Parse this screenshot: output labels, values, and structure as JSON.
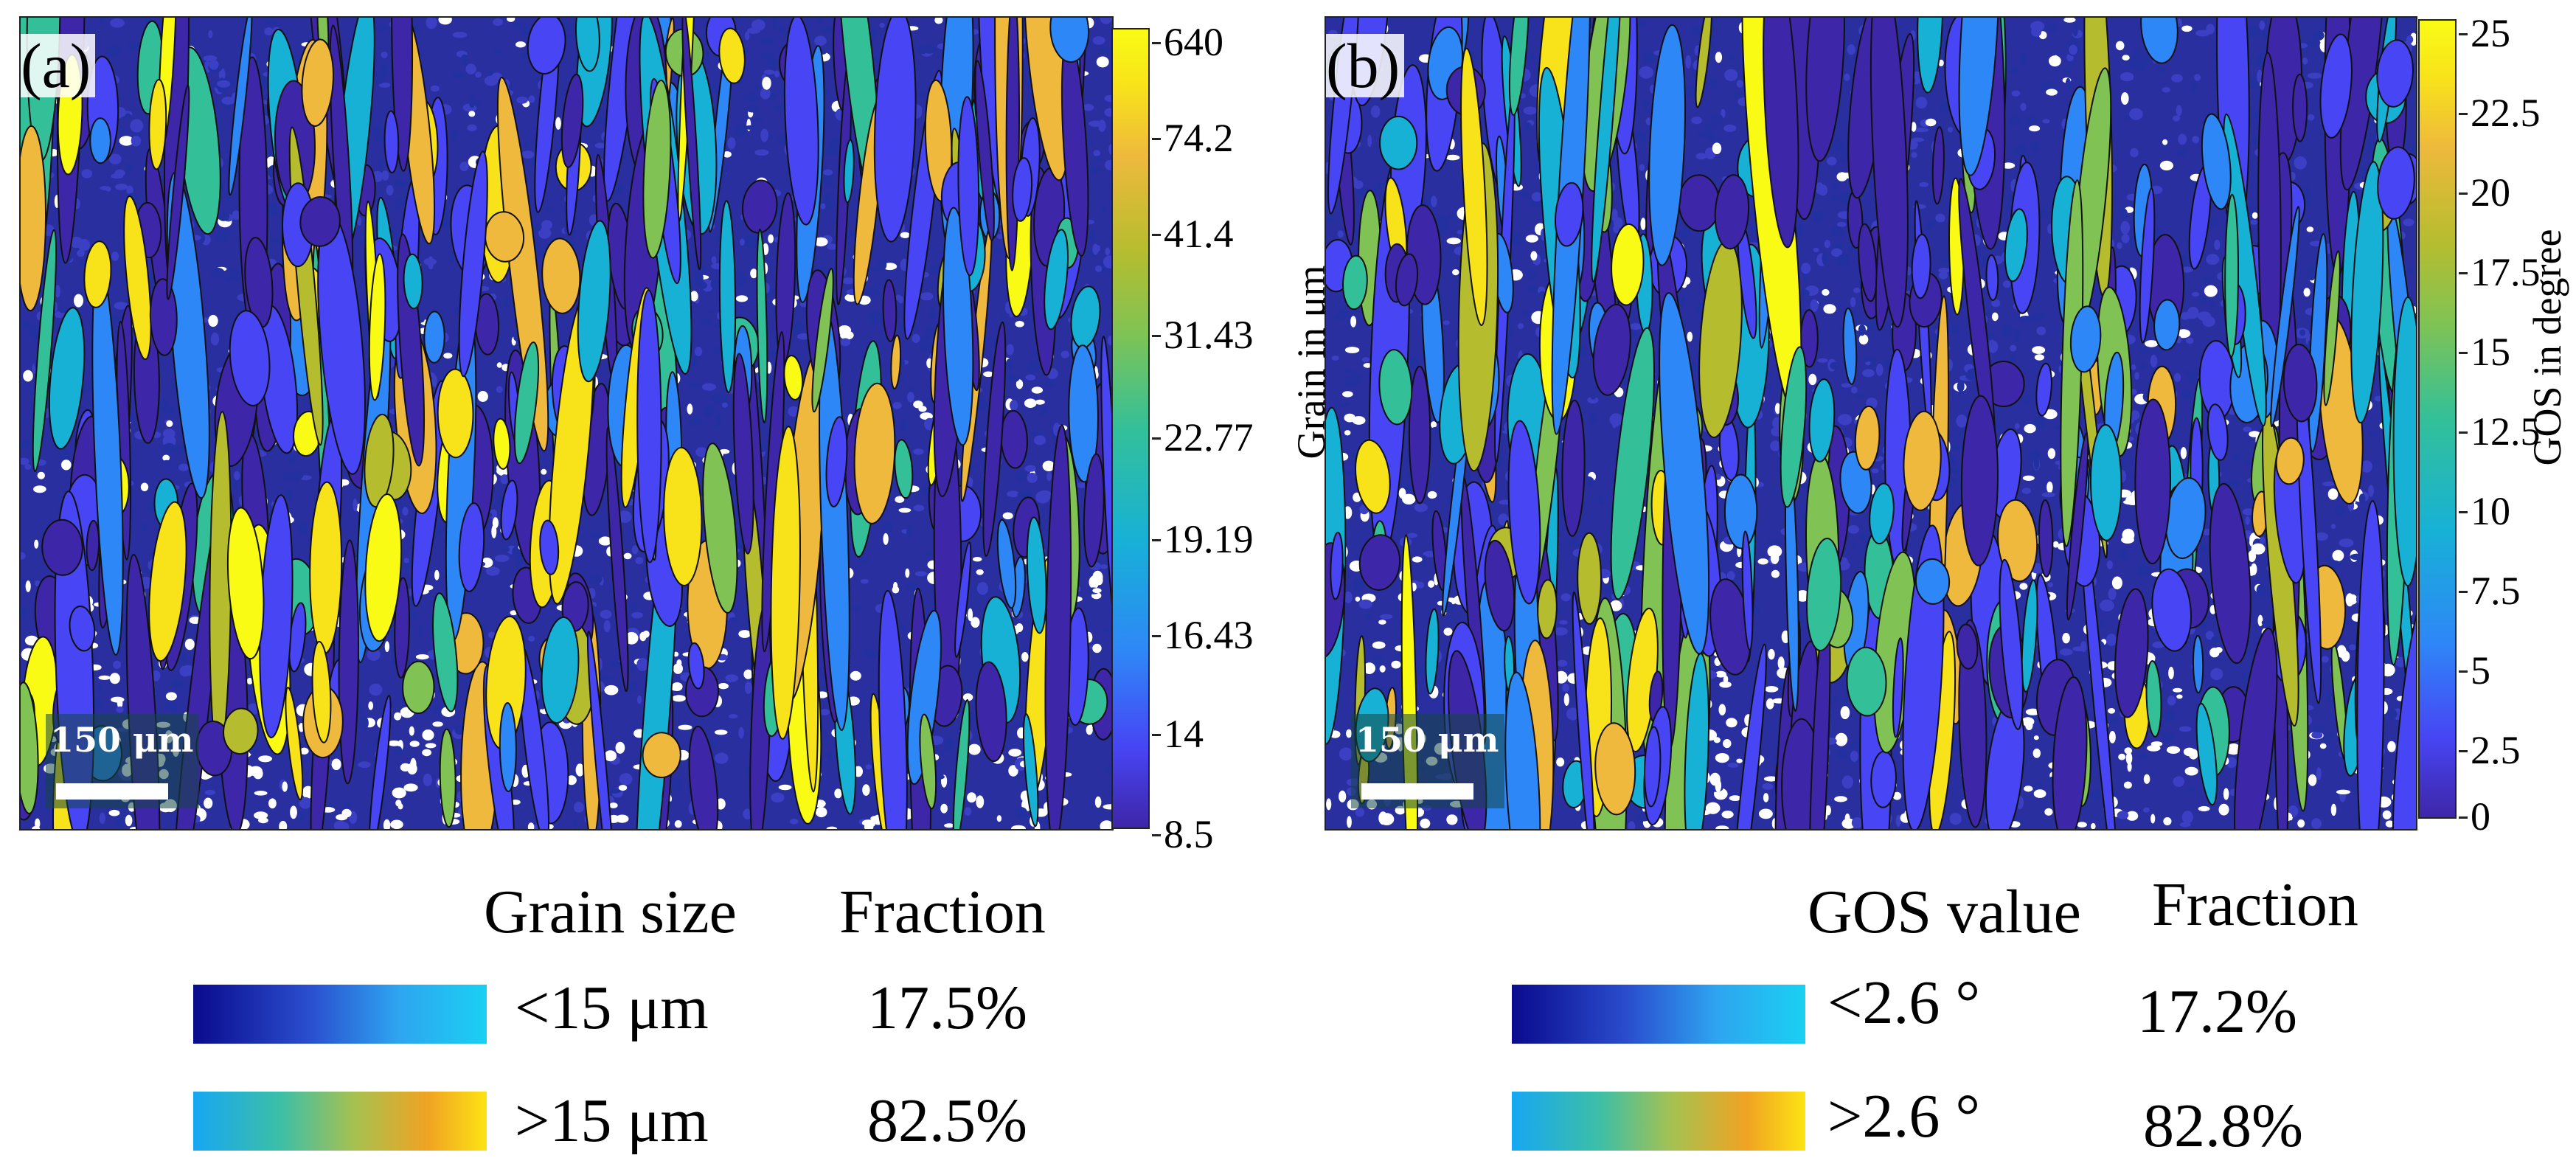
{
  "panel_a": {
    "label": "(a)",
    "scale_bar": "150 μm",
    "colorbar": {
      "title": "Grain in μm",
      "ticks": [
        "640",
        "74.2",
        "41.4",
        "31.43",
        "22.77",
        "19.19",
        "16.43",
        "14",
        "8.5"
      ]
    }
  },
  "panel_b": {
    "label": "(b)",
    "scale_bar": "150 μm",
    "colorbar": {
      "title": "GOS in degree",
      "ticks": [
        "25",
        "22.5",
        "20",
        "17.5",
        "15",
        "12.5",
        "10",
        "7.5",
        "5",
        "2.5",
        "0"
      ]
    }
  },
  "legend_a": {
    "header_quantity": "Grain size",
    "header_fraction": "Fraction",
    "rows": [
      {
        "range": "<15 μm",
        "fraction": "17.5%"
      },
      {
        "range": ">15 μm",
        "fraction": "82.5%"
      }
    ]
  },
  "legend_b": {
    "header_quantity": "GOS value",
    "header_fraction": "Fraction",
    "rows": [
      {
        "range": "<2.6 °",
        "fraction": "17.2%"
      },
      {
        "range": ">2.6 °",
        "fraction": "82.8%"
      }
    ]
  },
  "colors": {
    "colormap": [
      "#3e26a8",
      "#4745f4",
      "#2e87f7",
      "#17b1d6",
      "#33c099",
      "#80c354",
      "#b5bd2f",
      "#eeb93c",
      "#f8e31a",
      "#f9fb15"
    ],
    "background_fine": "#2a2fa0"
  }
}
